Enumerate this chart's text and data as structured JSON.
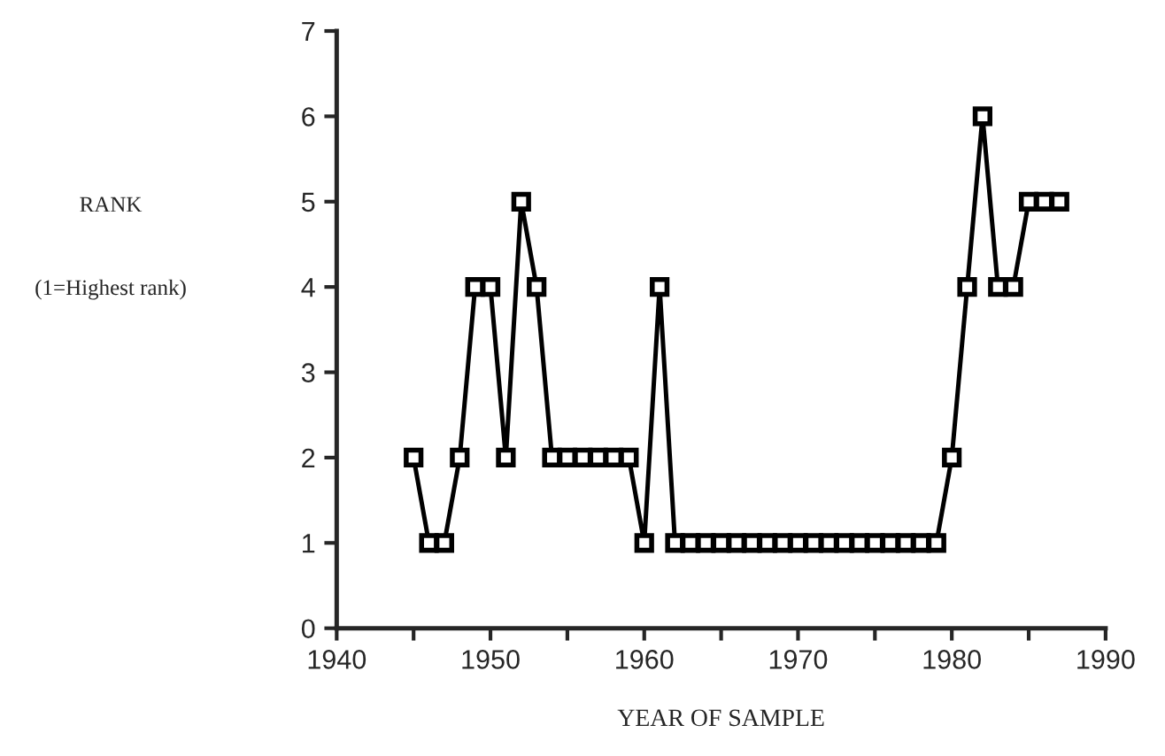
{
  "chart_data": {
    "type": "line",
    "xlabel": "YEAR OF SAMPLE",
    "annotations": [
      "RANK",
      "(1=Highest rank)"
    ],
    "x": [
      1945,
      1946,
      1947,
      1948,
      1949,
      1950,
      1951,
      1952,
      1953,
      1954,
      1955,
      1956,
      1957,
      1958,
      1959,
      1960,
      1961,
      1962,
      1963,
      1964,
      1965,
      1966,
      1967,
      1968,
      1969,
      1970,
      1971,
      1972,
      1973,
      1974,
      1975,
      1976,
      1977,
      1978,
      1979,
      1980,
      1981,
      1982,
      1983,
      1984,
      1985,
      1986,
      1987
    ],
    "series": [
      {
        "color": "#000000",
        "values": [
          2,
          1,
          1,
          2,
          4,
          4,
          2,
          5,
          4,
          2,
          2,
          2,
          2,
          2,
          2,
          1,
          4,
          1,
          1,
          1,
          1,
          1,
          1,
          1,
          1,
          1,
          1,
          1,
          1,
          1,
          1,
          1,
          1,
          1,
          1,
          2,
          4,
          6,
          4,
          4,
          5,
          5,
          5
        ]
      }
    ],
    "xlim": [
      1940,
      1990
    ],
    "xticks": [
      1940,
      {
        "value": 1945,
        "label": null
      },
      1950,
      {
        "value": 1955,
        "label": null
      },
      1960,
      {
        "value": 1965,
        "label": null
      },
      1970,
      {
        "value": 1975,
        "label": null
      },
      1980,
      {
        "value": 1985,
        "label": null
      },
      1990
    ],
    "ylim": [
      0,
      7
    ],
    "yticks": [
      0,
      1,
      2,
      3,
      4,
      5,
      6,
      7
    ],
    "marker": "square",
    "line_style": "solid",
    "grid": false,
    "legend": false
  }
}
